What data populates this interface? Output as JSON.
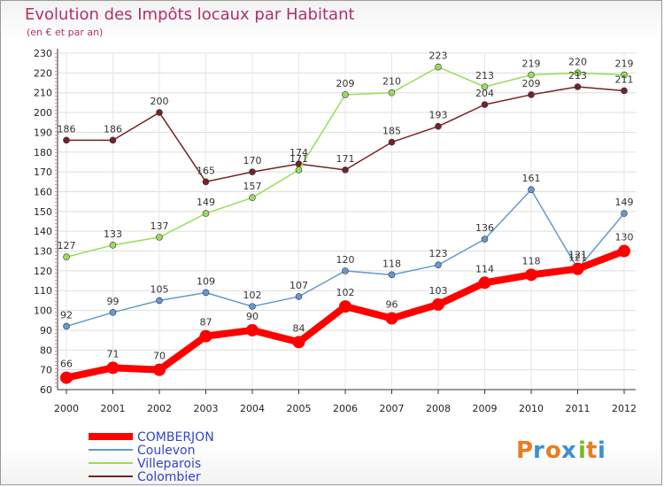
{
  "chart_data": {
    "type": "line",
    "title": "Evolution des Impôts locaux par Habitant",
    "subtitle": "(en € et par an)",
    "categories": [
      "2000",
      "2001",
      "2002",
      "2003",
      "2004",
      "2005",
      "2006",
      "2007",
      "2008",
      "2009",
      "2010",
      "2011",
      "2012"
    ],
    "ylim": [
      60,
      230
    ],
    "yticks": [
      60,
      70,
      80,
      90,
      100,
      110,
      120,
      130,
      140,
      150,
      160,
      170,
      180,
      190,
      200,
      210,
      220,
      230
    ],
    "grid": true,
    "legend_position": "bottom-left",
    "series": [
      {
        "name": "COMBERJON",
        "color": "#ff0000",
        "values": [
          66,
          71,
          70,
          87,
          90,
          84,
          102,
          96,
          103,
          114,
          118,
          121,
          130
        ]
      },
      {
        "name": "Coulevon",
        "color": "#6699cc",
        "values": [
          92,
          99,
          105,
          109,
          102,
          107,
          120,
          118,
          123,
          136,
          161,
          121,
          149
        ]
      },
      {
        "name": "Villeparois",
        "color": "#99dd55",
        "values": [
          127,
          133,
          137,
          149,
          157,
          171,
          209,
          210,
          223,
          213,
          219,
          220,
          219
        ]
      },
      {
        "name": "Colombier",
        "color": "#772222",
        "values": [
          186,
          186,
          200,
          165,
          170,
          174,
          171,
          185,
          193,
          204,
          209,
          213,
          211
        ]
      }
    ]
  },
  "brand": {
    "letters": [
      "P",
      "r",
      "o",
      "x",
      "i",
      "t",
      "i"
    ]
  }
}
